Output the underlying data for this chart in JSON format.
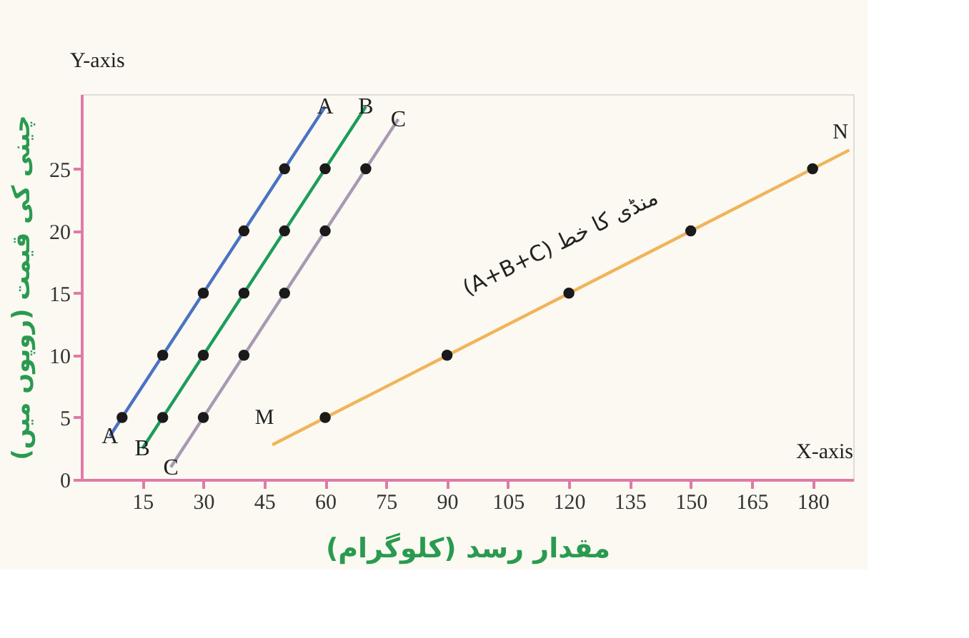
{
  "chart_data": {
    "type": "line",
    "xlabel": "مقدار رسد (کلوگرام)",
    "ylabel": "چینی کی قیمت (روپوں میں)",
    "xlim": [
      0,
      190
    ],
    "ylim": [
      0,
      31
    ],
    "xticks": [
      15,
      30,
      45,
      60,
      75,
      90,
      105,
      120,
      135,
      150,
      165,
      180
    ],
    "yticks": [
      0,
      5,
      10,
      15,
      20,
      25
    ],
    "grid": false,
    "legend": false,
    "series": [
      {
        "name": "A",
        "type": "line",
        "color": "#4a72c4",
        "marker": "none",
        "line_style": "solid",
        "x": [
          7,
          60
        ],
        "values": [
          3.5,
          30
        ]
      },
      {
        "name": "B",
        "type": "line",
        "color": "#1c9c5c",
        "marker": "none",
        "line_style": "solid",
        "x": [
          15,
          70
        ],
        "values": [
          2.5,
          30
        ]
      },
      {
        "name": "C",
        "type": "line",
        "color": "#a898b4",
        "marker": "none",
        "line_style": "solid",
        "x": [
          22,
          78
        ],
        "values": [
          1,
          29
        ]
      },
      {
        "type": "line",
        "color": "#f0b45a",
        "marker": "none",
        "line_style": "solid",
        "x": [
          47,
          189
        ],
        "values": [
          2.8,
          26.5
        ]
      },
      {
        "type": "scatter",
        "color": "#1a1a1a",
        "marker": "circle",
        "x": [
          10,
          20,
          30,
          40,
          50
        ],
        "values": [
          5,
          10,
          15,
          20,
          25
        ]
      },
      {
        "type": "scatter",
        "color": "#1a1a1a",
        "marker": "circle",
        "x": [
          20,
          30,
          40,
          50,
          60
        ],
        "values": [
          5,
          10,
          15,
          20,
          25
        ]
      },
      {
        "type": "scatter",
        "color": "#1a1a1a",
        "marker": "circle",
        "x": [
          30,
          40,
          50,
          60,
          70
        ],
        "values": [
          5,
          10,
          15,
          20,
          25
        ]
      },
      {
        "type": "scatter",
        "color": "#1a1a1a",
        "marker": "circle",
        "x": [
          60,
          90,
          120,
          150,
          180
        ],
        "values": [
          5,
          10,
          15,
          20,
          25
        ]
      }
    ],
    "annotations": [
      "Y-axis",
      "X-axis",
      "M",
      "N",
      "(A+B+C) منڈی کا خط"
    ]
  }
}
